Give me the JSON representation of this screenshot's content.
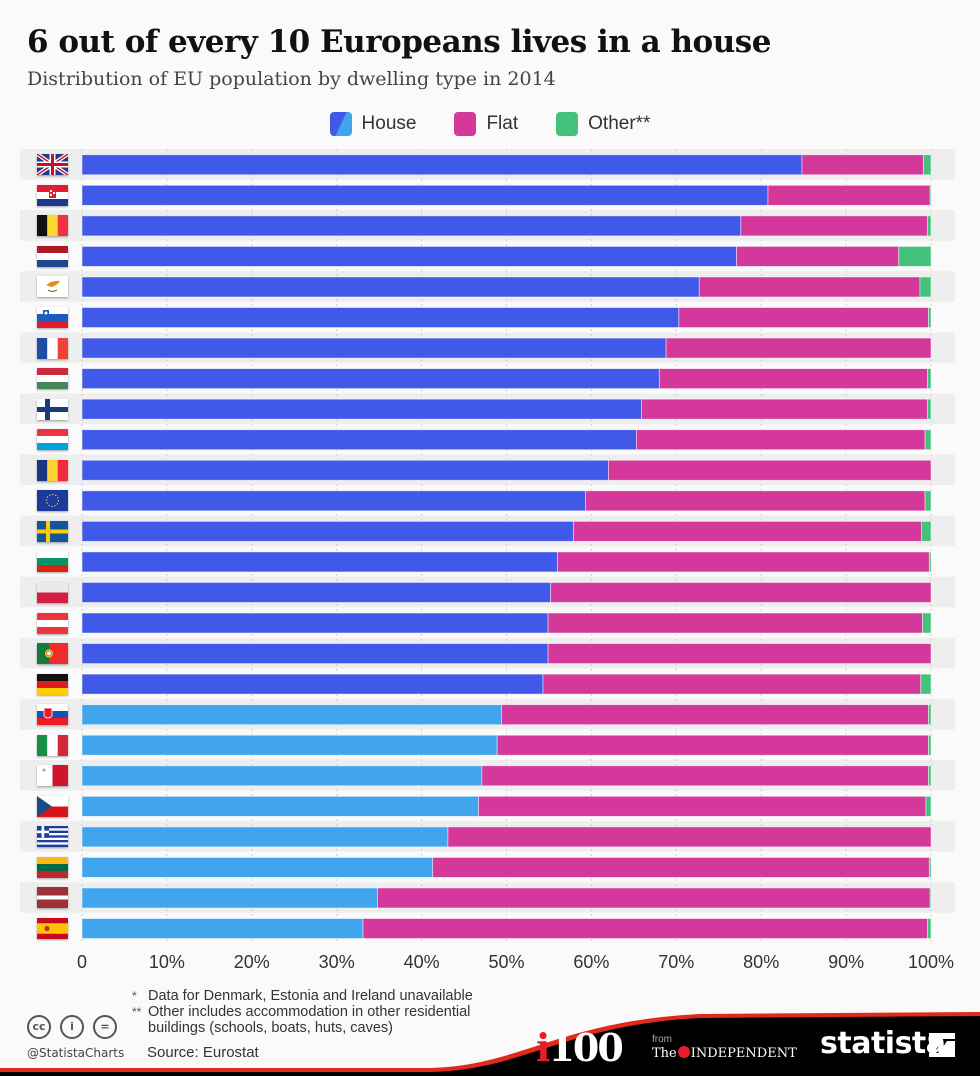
{
  "header": {
    "title": "6 out of every 10 Europeans lives in a house",
    "subtitle": "Distribution of EU population by dwelling type in 2014"
  },
  "legend": [
    {
      "label": "House",
      "color": "#4159e8",
      "color2": "#41a5ee"
    },
    {
      "label": "Flat",
      "color": "#d3389a"
    },
    {
      "label": "Other**",
      "color": "#44c17b"
    }
  ],
  "colors": {
    "house_majority": "#4159e8",
    "house_minority": "#41a5ee",
    "flat": "#d3389a",
    "other": "#44c17b",
    "row_band": "#eeeeee"
  },
  "chart_data": {
    "type": "bar",
    "orientation": "horizontal",
    "stacked": true,
    "title": "6 out of every 10 Europeans lives in a house",
    "subtitle": "Distribution of EU population by dwelling type in 2014",
    "xlabel": "",
    "ylabel": "",
    "xlim": [
      0,
      100
    ],
    "x_ticks": [
      "0",
      "10%",
      "20%",
      "30%",
      "40%",
      "50%",
      "60%",
      "70%",
      "80%",
      "90%",
      "100%"
    ],
    "grid": true,
    "legend_position": "top-center",
    "categories": [
      "United Kingdom",
      "Croatia",
      "Belgium",
      "Netherlands",
      "Cyprus",
      "Slovenia",
      "France",
      "Hungary",
      "Finland",
      "Luxembourg",
      "Romania",
      "European Union",
      "Sweden",
      "Bulgaria",
      "Poland",
      "Austria",
      "Portugal",
      "Germany",
      "Slovakia",
      "Italy",
      "Malta",
      "Czech Republic",
      "Greece",
      "Lithuania",
      "Latvia",
      "Spain"
    ],
    "flags": [
      "gb",
      "hr",
      "be",
      "nl",
      "cy",
      "si",
      "fr",
      "hu",
      "fi",
      "lu",
      "ro",
      "eu",
      "se",
      "bg",
      "pl",
      "at",
      "pt",
      "de",
      "sk",
      "it",
      "mt",
      "cz",
      "gr",
      "lt",
      "lv",
      "es"
    ],
    "series": [
      {
        "name": "House",
        "values": [
          84.8,
          80.8,
          77.6,
          77.1,
          72.7,
          70.3,
          68.8,
          68.0,
          65.9,
          65.3,
          62.0,
          59.3,
          57.9,
          56.0,
          55.2,
          54.9,
          54.9,
          54.3,
          49.4,
          48.9,
          47.1,
          46.7,
          43.1,
          41.3,
          34.8,
          33.1
        ]
      },
      {
        "name": "Flat",
        "values": [
          14.3,
          19.1,
          22.0,
          19.1,
          26.0,
          29.4,
          31.2,
          31.6,
          33.7,
          34.0,
          38.0,
          40.0,
          41.0,
          43.8,
          44.8,
          44.1,
          45.1,
          44.5,
          50.3,
          50.8,
          52.6,
          52.7,
          56.9,
          58.5,
          65.1,
          66.5
        ]
      },
      {
        "name": "Other**",
        "values": [
          0.9,
          0.1,
          0.4,
          3.8,
          1.3,
          0.3,
          0.0,
          0.4,
          0.4,
          0.7,
          0.0,
          0.7,
          1.1,
          0.2,
          0.0,
          1.0,
          0.0,
          1.2,
          0.3,
          0.3,
          0.3,
          0.6,
          0.0,
          0.2,
          0.1,
          0.4
        ]
      }
    ]
  },
  "footer": {
    "note1_mark": "*",
    "note1": "Data for Denmark, Estonia and Ireland unavailable",
    "note2_mark": "**",
    "note2_line1": "Other includes accommodation in other residential",
    "note2_line2": "buildings (schools, boats, huts, caves)",
    "source": "Source: Eurostat",
    "handle": "@StatistaCharts",
    "cc_icons": [
      "cc",
      "i",
      "="
    ],
    "brand_i100_i": "i",
    "brand_i100_rest": "100",
    "from": "from",
    "independent_the": "The",
    "independent_name": "INDEPENDENT",
    "statista": "statista"
  }
}
